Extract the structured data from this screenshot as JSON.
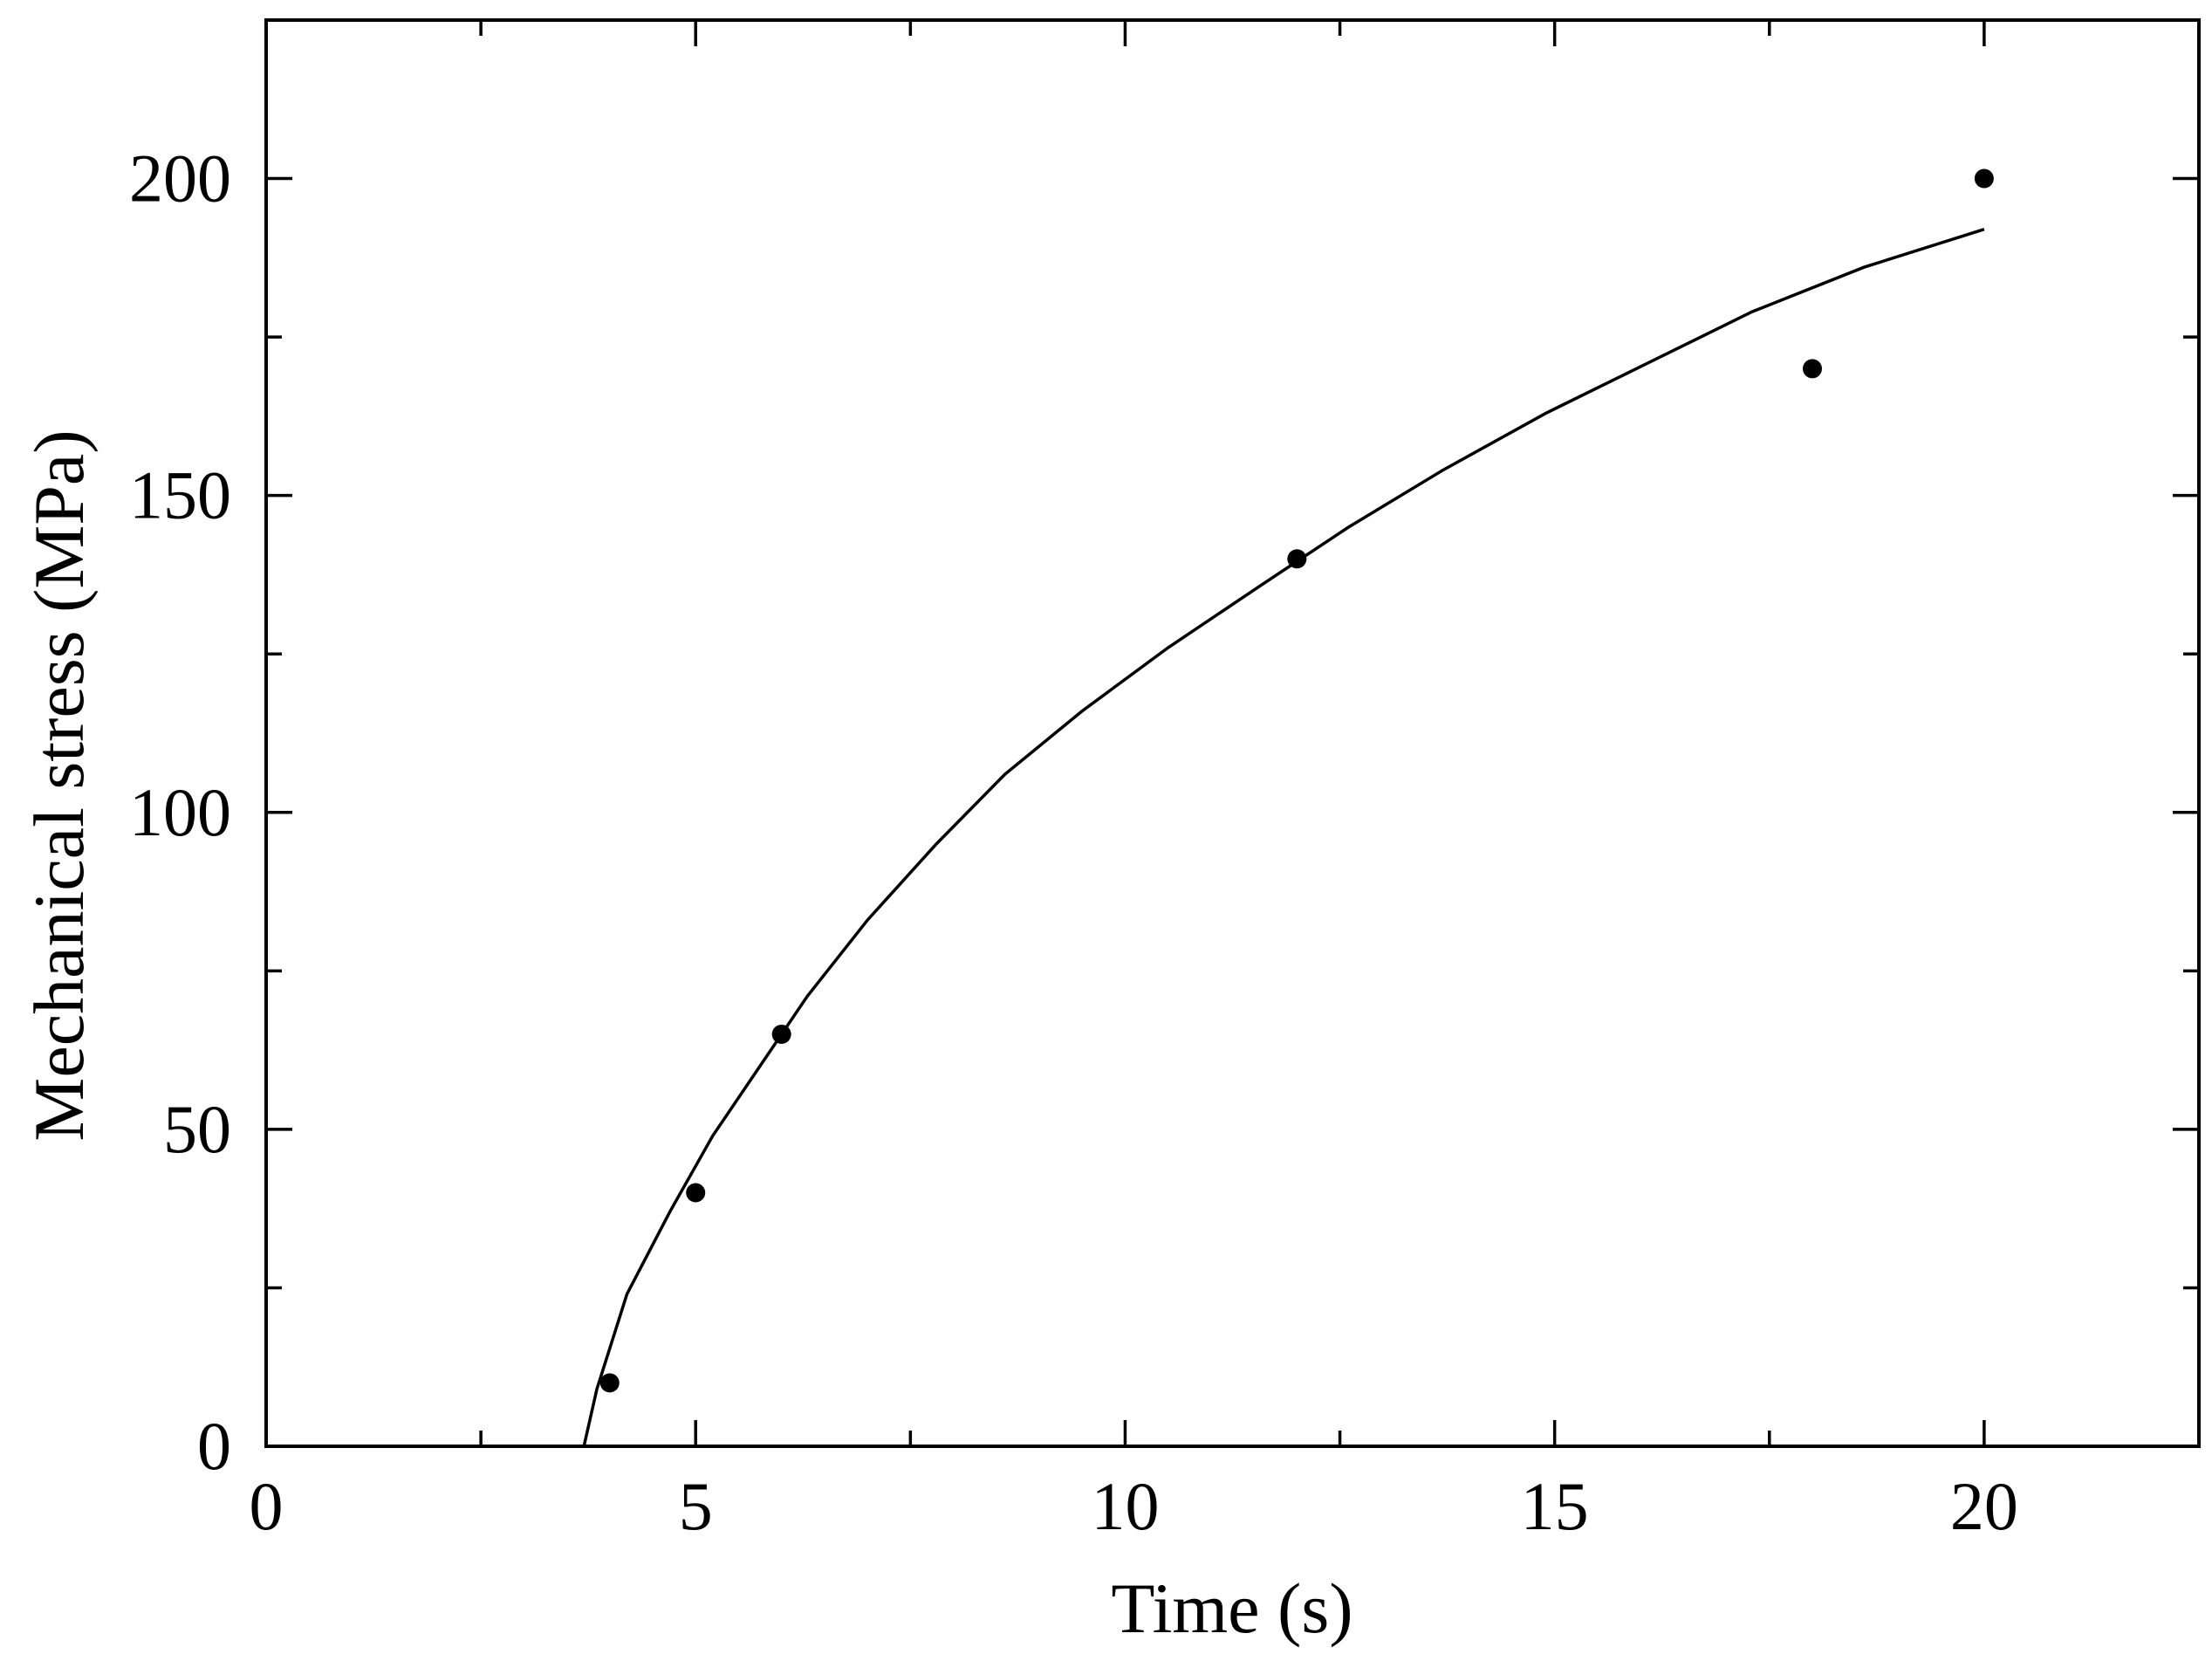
{
  "chart_data": {
    "type": "scatter",
    "title": "",
    "xlabel": "Time (s)",
    "ylabel": "Mechanical stress (MPa)",
    "xlim": [
      0,
      22.5
    ],
    "ylim": [
      0,
      225
    ],
    "x_ticks_major": [
      0,
      5,
      10,
      15,
      20
    ],
    "x_tick_labels": [
      "0",
      "5",
      "10",
      "15",
      "20"
    ],
    "x_ticks_minor": [
      2.5,
      7.5,
      12.5,
      17.5
    ],
    "y_ticks_major": [
      0,
      50,
      100,
      150,
      200
    ],
    "y_tick_labels": [
      "0",
      "50",
      "100",
      "150",
      "200"
    ],
    "y_ticks_minor": [
      25,
      75,
      125,
      175
    ],
    "grid": false,
    "series": [
      {
        "kind": "points",
        "color": "#000000",
        "x": [
          4,
          5,
          6,
          12,
          18,
          20
        ],
        "y": [
          10,
          40,
          65,
          140,
          170,
          200
        ]
      },
      {
        "kind": "line",
        "color": "#000000",
        "x": [
          3.7,
          3.85,
          4.2,
          4.7,
          5.2,
          5.8,
          6.3,
          7.0,
          7.8,
          8.6,
          9.5,
          10.5,
          11.6,
          12.6,
          13.7,
          14.9,
          16.1,
          17.3,
          18.6,
          20.0
        ],
        "y": [
          0,
          9,
          24,
          37,
          49,
          61,
          71,
          83,
          95,
          106,
          116,
          126,
          136,
          145,
          154,
          163,
          171,
          179,
          186,
          192
        ]
      }
    ]
  }
}
